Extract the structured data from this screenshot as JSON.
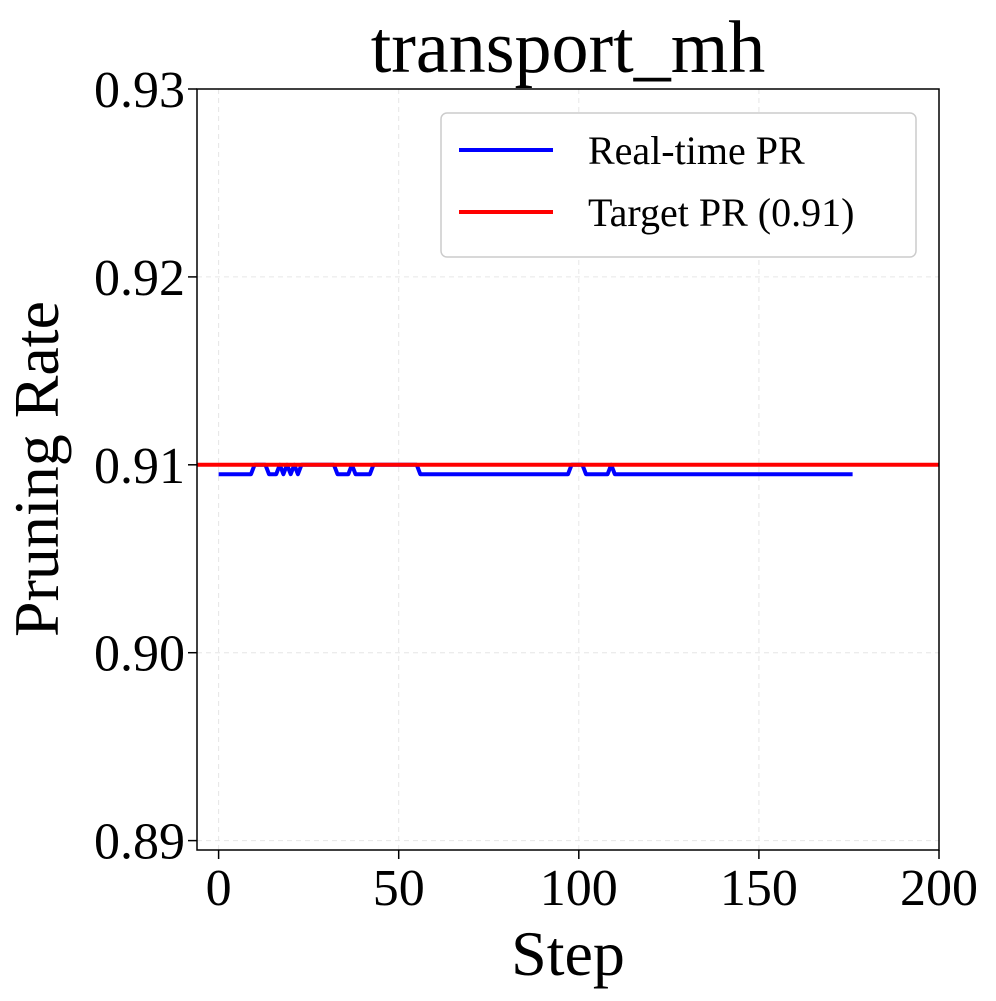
{
  "chart_data": {
    "type": "line",
    "title": "transport_mh",
    "xlabel": "Step",
    "ylabel": "Pruning Rate",
    "xlim": [
      -6,
      200
    ],
    "ylim": [
      0.8895,
      0.93
    ],
    "xticks": [
      0,
      50,
      100,
      150,
      200
    ],
    "xtick_labels": [
      "0",
      "50",
      "100",
      "150",
      "200"
    ],
    "yticks": [
      0.89,
      0.9,
      0.91,
      0.92,
      0.93
    ],
    "ytick_labels": [
      "0.89",
      "0.90",
      "0.91",
      "0.92",
      "0.93"
    ],
    "grid": true,
    "legend_position": "top-right",
    "series": [
      {
        "name": "Real-time PR",
        "color": "#0000ff",
        "x": [
          0,
          9,
          10,
          13,
          14,
          16,
          17,
          18,
          19,
          20,
          21,
          22,
          23,
          32,
          33,
          36,
          37,
          38,
          39,
          42,
          43,
          55,
          56,
          97,
          98,
          101,
          102,
          108,
          109,
          110,
          111,
          121,
          122,
          176
        ],
        "y": [
          0.9095,
          0.9095,
          0.91,
          0.91,
          0.9095,
          0.9095,
          0.91,
          0.9095,
          0.91,
          0.9095,
          0.91,
          0.9095,
          0.91,
          0.91,
          0.9095,
          0.9095,
          0.91,
          0.9095,
          0.9095,
          0.9095,
          0.91,
          0.91,
          0.9095,
          0.9095,
          0.91,
          0.91,
          0.9095,
          0.9095,
          0.91,
          0.9095,
          0.9095,
          0.9095,
          0.9095,
          0.9095
        ]
      },
      {
        "name": "Target PR (0.91)",
        "color": "#ff0000",
        "x": [
          -6,
          200
        ],
        "y": [
          0.91,
          0.91
        ]
      }
    ]
  }
}
